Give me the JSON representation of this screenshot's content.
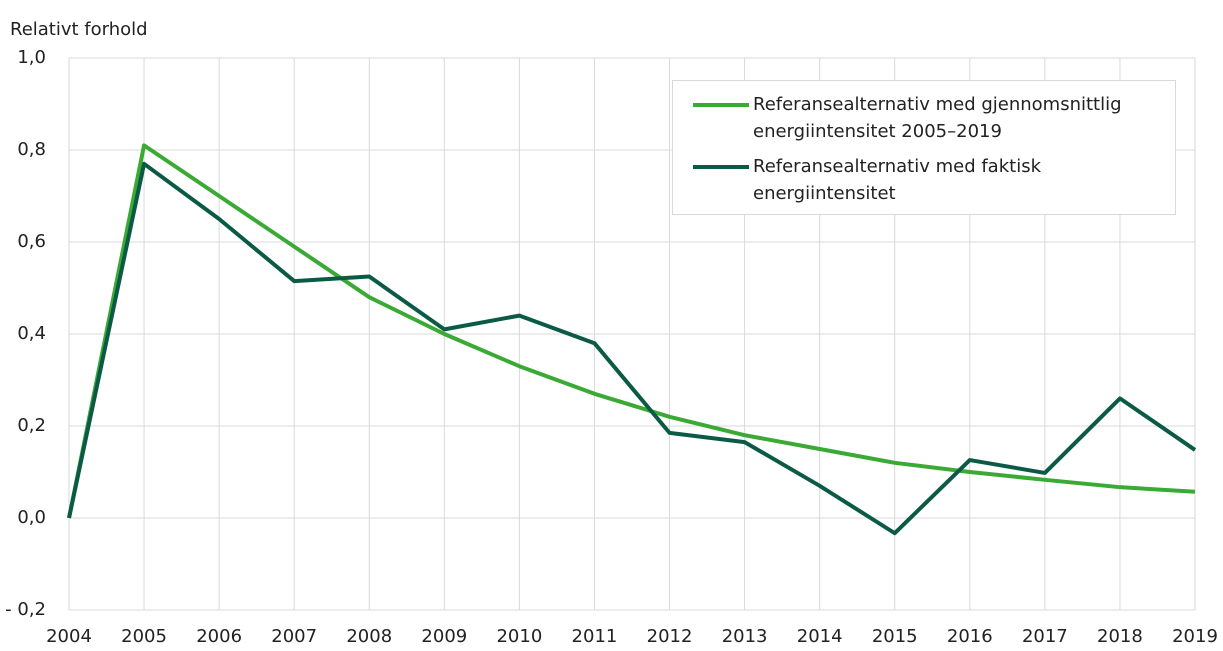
{
  "chart_data": {
    "type": "line",
    "y_axis_label": "Relativt forhold",
    "x": [
      2004,
      2005,
      2006,
      2007,
      2008,
      2009,
      2010,
      2011,
      2012,
      2013,
      2014,
      2015,
      2016,
      2017,
      2018,
      2019
    ],
    "xlim": [
      2004,
      2019
    ],
    "xticks": [
      2004,
      2005,
      2006,
      2007,
      2008,
      2009,
      2010,
      2011,
      2012,
      2013,
      2014,
      2015,
      2016,
      2017,
      2018,
      2019
    ],
    "ylim": [
      -0.2,
      1.0
    ],
    "yticks": [
      {
        "value": -0.2,
        "label": "- 0,2"
      },
      {
        "value": 0,
        "label": "0,0"
      },
      {
        "value": 0.2,
        "label": "0,2"
      },
      {
        "value": 0.4,
        "label": "0,4"
      },
      {
        "value": 0.6,
        "label": "0,6"
      },
      {
        "value": 0.8,
        "label": "0,8"
      },
      {
        "value": 1.0,
        "label": "1,0"
      }
    ],
    "grid": true,
    "legend_position": "upper right",
    "series": [
      {
        "name": "Referansealternativ med gjennomsnittlig energiintensitet 2005–2019",
        "color": "#3aaa35",
        "values": [
          0,
          0.81,
          0.7,
          0.59,
          0.48,
          0.4,
          0.33,
          0.27,
          0.22,
          0.18,
          0.15,
          0.12,
          0.1,
          0.083,
          0.067,
          0.057
        ]
      },
      {
        "name": "Referansealternativ med faktisk energiintensitet",
        "color": "#0b5a45",
        "values": [
          0,
          0.77,
          0.65,
          0.515,
          0.525,
          0.41,
          0.44,
          0.38,
          0.185,
          0.165,
          0.07,
          -0.033,
          0.126,
          0.098,
          0.26,
          0.148
        ]
      }
    ]
  }
}
